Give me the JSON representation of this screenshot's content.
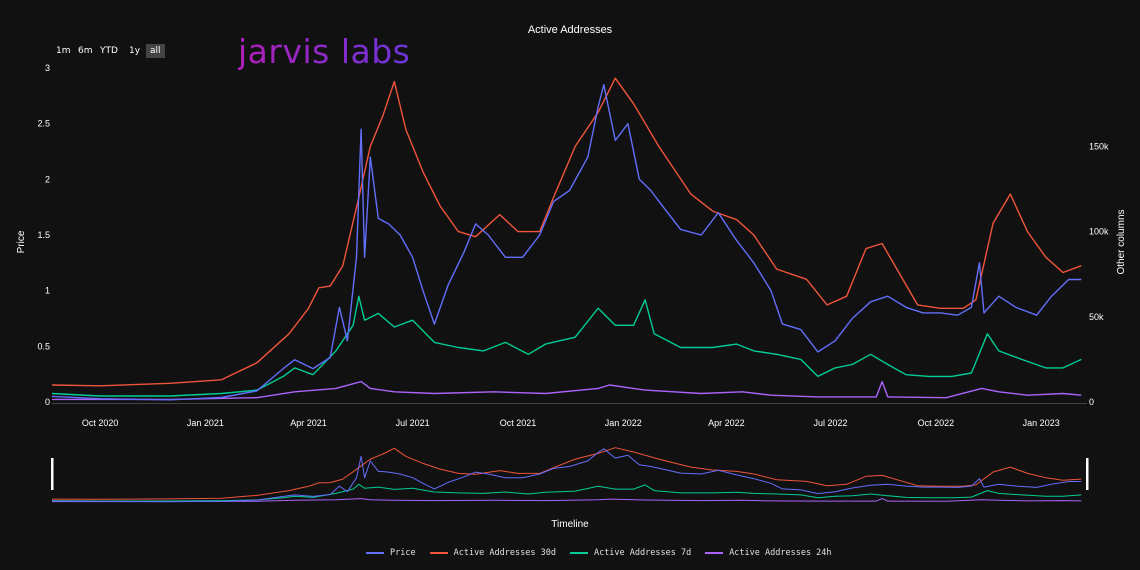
{
  "logo": "jarvis labs",
  "range_buttons": [
    "1m",
    "6m",
    "YTD",
    "1y",
    "all"
  ],
  "range_selected": "all",
  "chart_data": {
    "type": "line",
    "title": "Active Addresses",
    "xlabel": "Timeline",
    "ylabel_left": "Price",
    "ylabel_right": "Other columns",
    "x_ticks": [
      "Oct 2020",
      "Jan 2021",
      "Apr 2021",
      "Jul 2021",
      "Oct 2021",
      "Jan 2022",
      "Apr 2022",
      "Jul 2022",
      "Oct 2022",
      "Jan 2023"
    ],
    "x_range": [
      "2020-08-20",
      "2023-02-10"
    ],
    "y_left_ticks": [
      "0",
      "0.5",
      "1",
      "1.5",
      "2",
      "2.5",
      "3"
    ],
    "y_left_range": [
      0,
      3
    ],
    "y_right_ticks": [
      "0",
      "50k",
      "100k",
      "150k"
    ],
    "y_right_range": [
      0,
      196000
    ],
    "legend_position": "bottom",
    "grid": false,
    "series": [
      {
        "name": "Price",
        "axis": "left",
        "color": "#636efa",
        "points": [
          [
            "2020-08-20",
            0.05
          ],
          [
            "2020-10-01",
            0.03
          ],
          [
            "2020-12-01",
            0.02
          ],
          [
            "2021-01-15",
            0.04
          ],
          [
            "2021-02-15",
            0.1
          ],
          [
            "2021-03-10",
            0.3
          ],
          [
            "2021-03-20",
            0.38
          ],
          [
            "2021-04-05",
            0.3
          ],
          [
            "2021-04-20",
            0.4
          ],
          [
            "2021-04-28",
            0.85
          ],
          [
            "2021-05-05",
            0.55
          ],
          [
            "2021-05-13",
            1.3
          ],
          [
            "2021-05-17",
            2.45
          ],
          [
            "2021-05-20",
            1.3
          ],
          [
            "2021-05-25",
            2.2
          ],
          [
            "2021-06-01",
            1.65
          ],
          [
            "2021-06-10",
            1.6
          ],
          [
            "2021-06-20",
            1.5
          ],
          [
            "2021-07-01",
            1.3
          ],
          [
            "2021-07-10",
            1.0
          ],
          [
            "2021-07-20",
            0.7
          ],
          [
            "2021-08-01",
            1.05
          ],
          [
            "2021-08-15",
            1.35
          ],
          [
            "2021-08-25",
            1.6
          ],
          [
            "2021-09-05",
            1.5
          ],
          [
            "2021-09-20",
            1.3
          ],
          [
            "2021-10-05",
            1.3
          ],
          [
            "2021-10-20",
            1.5
          ],
          [
            "2021-11-01",
            1.8
          ],
          [
            "2021-11-15",
            1.9
          ],
          [
            "2021-12-01",
            2.2
          ],
          [
            "2021-12-10",
            2.65
          ],
          [
            "2021-12-15",
            2.85
          ],
          [
            "2021-12-25",
            2.35
          ],
          [
            "2022-01-05",
            2.5
          ],
          [
            "2022-01-15",
            2.0
          ],
          [
            "2022-01-25",
            1.9
          ],
          [
            "2022-02-05",
            1.75
          ],
          [
            "2022-02-20",
            1.55
          ],
          [
            "2022-03-10",
            1.5
          ],
          [
            "2022-03-25",
            1.7
          ],
          [
            "2022-04-10",
            1.45
          ],
          [
            "2022-04-25",
            1.25
          ],
          [
            "2022-05-10",
            1.0
          ],
          [
            "2022-05-20",
            0.7
          ],
          [
            "2022-06-05",
            0.65
          ],
          [
            "2022-06-20",
            0.45
          ],
          [
            "2022-07-05",
            0.55
          ],
          [
            "2022-07-20",
            0.75
          ],
          [
            "2022-08-05",
            0.9
          ],
          [
            "2022-08-20",
            0.95
          ],
          [
            "2022-09-05",
            0.85
          ],
          [
            "2022-09-20",
            0.8
          ],
          [
            "2022-10-05",
            0.8
          ],
          [
            "2022-10-20",
            0.78
          ],
          [
            "2022-11-01",
            0.85
          ],
          [
            "2022-11-08",
            1.25
          ],
          [
            "2022-11-12",
            0.8
          ],
          [
            "2022-11-25",
            0.95
          ],
          [
            "2022-12-10",
            0.85
          ],
          [
            "2022-12-28",
            0.78
          ],
          [
            "2023-01-10",
            0.95
          ],
          [
            "2023-01-25",
            1.1
          ],
          [
            "2023-02-05",
            1.1
          ]
        ]
      },
      {
        "name": "Active Addresses 30d",
        "axis": "right",
        "color": "#ef553b",
        "points": [
          [
            "2020-08-20",
            10000
          ],
          [
            "2020-10-01",
            9500
          ],
          [
            "2020-12-01",
            11000
          ],
          [
            "2021-01-15",
            13000
          ],
          [
            "2021-02-15",
            23000
          ],
          [
            "2021-03-15",
            40000
          ],
          [
            "2021-04-01",
            55000
          ],
          [
            "2021-04-10",
            67000
          ],
          [
            "2021-04-20",
            68000
          ],
          [
            "2021-05-01",
            80000
          ],
          [
            "2021-05-15",
            120000
          ],
          [
            "2021-05-25",
            150000
          ],
          [
            "2021-06-05",
            168000
          ],
          [
            "2021-06-15",
            188000
          ],
          [
            "2021-06-25",
            160000
          ],
          [
            "2021-07-10",
            135000
          ],
          [
            "2021-07-25",
            115000
          ],
          [
            "2021-08-10",
            100000
          ],
          [
            "2021-08-25",
            97000
          ],
          [
            "2021-09-15",
            110000
          ],
          [
            "2021-10-01",
            100000
          ],
          [
            "2021-10-20",
            100000
          ],
          [
            "2021-11-01",
            120000
          ],
          [
            "2021-11-20",
            150000
          ],
          [
            "2021-12-10",
            170000
          ],
          [
            "2021-12-25",
            190000
          ],
          [
            "2022-01-10",
            175000
          ],
          [
            "2022-02-01",
            150000
          ],
          [
            "2022-03-01",
            122000
          ],
          [
            "2022-03-20",
            112000
          ],
          [
            "2022-04-10",
            107000
          ],
          [
            "2022-04-25",
            98000
          ],
          [
            "2022-05-15",
            78000
          ],
          [
            "2022-06-10",
            72000
          ],
          [
            "2022-06-28",
            57000
          ],
          [
            "2022-07-15",
            62000
          ],
          [
            "2022-08-01",
            90000
          ],
          [
            "2022-08-15",
            93000
          ],
          [
            "2022-08-28",
            78000
          ],
          [
            "2022-09-15",
            57000
          ],
          [
            "2022-10-05",
            55000
          ],
          [
            "2022-10-25",
            55000
          ],
          [
            "2022-11-05",
            60000
          ],
          [
            "2022-11-20",
            105000
          ],
          [
            "2022-12-05",
            122000
          ],
          [
            "2022-12-20",
            100000
          ],
          [
            "2023-01-05",
            85000
          ],
          [
            "2023-01-20",
            76000
          ],
          [
            "2023-02-05",
            80000
          ]
        ]
      },
      {
        "name": "Active Addresses 7d",
        "axis": "right",
        "color": "#00cc96",
        "points": [
          [
            "2020-08-20",
            5000
          ],
          [
            "2020-10-01",
            3500
          ],
          [
            "2020-12-01",
            3500
          ],
          [
            "2021-01-15",
            5000
          ],
          [
            "2021-02-15",
            7000
          ],
          [
            "2021-03-10",
            15000
          ],
          [
            "2021-03-20",
            20000
          ],
          [
            "2021-04-05",
            16000
          ],
          [
            "2021-04-25",
            30000
          ],
          [
            "2021-05-10",
            45000
          ],
          [
            "2021-05-15",
            62000
          ],
          [
            "2021-05-20",
            48000
          ],
          [
            "2021-06-01",
            52000
          ],
          [
            "2021-06-15",
            44000
          ],
          [
            "2021-07-01",
            48000
          ],
          [
            "2021-07-20",
            35000
          ],
          [
            "2021-08-10",
            32000
          ],
          [
            "2021-09-01",
            30000
          ],
          [
            "2021-09-20",
            35000
          ],
          [
            "2021-10-10",
            28000
          ],
          [
            "2021-10-25",
            34000
          ],
          [
            "2021-11-20",
            38000
          ],
          [
            "2021-12-10",
            55000
          ],
          [
            "2021-12-25",
            45000
          ],
          [
            "2022-01-10",
            45000
          ],
          [
            "2022-01-20",
            60000
          ],
          [
            "2022-01-28",
            40000
          ],
          [
            "2022-02-20",
            32000
          ],
          [
            "2022-03-20",
            32000
          ],
          [
            "2022-04-10",
            34000
          ],
          [
            "2022-04-25",
            30000
          ],
          [
            "2022-05-15",
            28000
          ],
          [
            "2022-06-05",
            25000
          ],
          [
            "2022-06-20",
            15000
          ],
          [
            "2022-07-05",
            20000
          ],
          [
            "2022-07-20",
            22000
          ],
          [
            "2022-08-05",
            28000
          ],
          [
            "2022-08-20",
            22000
          ],
          [
            "2022-09-05",
            16000
          ],
          [
            "2022-09-25",
            15000
          ],
          [
            "2022-10-15",
            15000
          ],
          [
            "2022-11-01",
            17000
          ],
          [
            "2022-11-15",
            40000
          ],
          [
            "2022-11-25",
            30000
          ],
          [
            "2022-12-15",
            25000
          ],
          [
            "2023-01-05",
            20000
          ],
          [
            "2023-01-20",
            20000
          ],
          [
            "2023-02-05",
            25000
          ]
        ]
      },
      {
        "name": "Active Addresses 24h",
        "axis": "right",
        "color": "#ab63fa",
        "points": [
          [
            "2020-08-20",
            1500
          ],
          [
            "2020-12-01",
            1500
          ],
          [
            "2021-02-15",
            2500
          ],
          [
            "2021-03-20",
            6000
          ],
          [
            "2021-04-25",
            8000
          ],
          [
            "2021-05-17",
            12000
          ],
          [
            "2021-05-25",
            8000
          ],
          [
            "2021-06-15",
            6000
          ],
          [
            "2021-07-20",
            5000
          ],
          [
            "2021-09-10",
            6000
          ],
          [
            "2021-10-25",
            5000
          ],
          [
            "2021-12-10",
            8000
          ],
          [
            "2021-12-20",
            10000
          ],
          [
            "2022-01-20",
            7000
          ],
          [
            "2022-03-10",
            5000
          ],
          [
            "2022-04-15",
            6000
          ],
          [
            "2022-05-10",
            4000
          ],
          [
            "2022-06-20",
            3000
          ],
          [
            "2022-08-10",
            3000
          ],
          [
            "2022-08-15",
            12000
          ],
          [
            "2022-08-20",
            3000
          ],
          [
            "2022-10-10",
            2500
          ],
          [
            "2022-11-10",
            8000
          ],
          [
            "2022-11-25",
            6000
          ],
          [
            "2022-12-20",
            4000
          ],
          [
            "2023-01-20",
            5000
          ],
          [
            "2023-02-05",
            4000
          ]
        ]
      }
    ]
  }
}
